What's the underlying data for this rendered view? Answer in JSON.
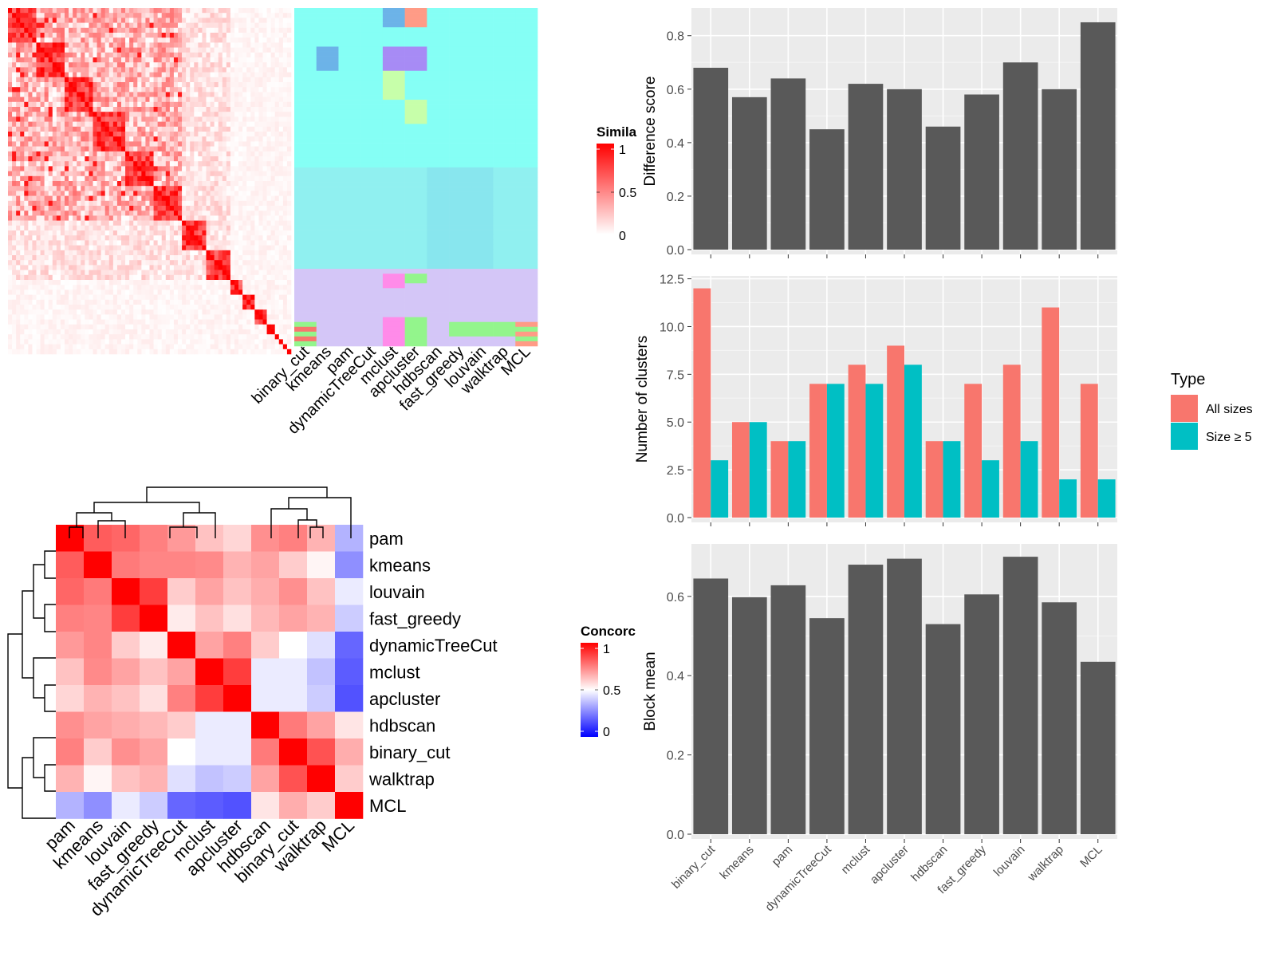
{
  "methods": [
    "binary_cut",
    "kmeans",
    "pam",
    "dynamicTreeCut",
    "mclust",
    "apcluster",
    "hdbscan",
    "fast_greedy",
    "louvain",
    "walktrap",
    "MCL"
  ],
  "similarity_legend": {
    "title": "Simila",
    "ticks": [
      "1",
      "0.5",
      "0"
    ]
  },
  "concordance_legend": {
    "title": "Concorc",
    "ticks": [
      "1",
      "0.5",
      "0"
    ]
  },
  "concordance_heatmap": {
    "order": [
      "pam",
      "kmeans",
      "louvain",
      "fast_greedy",
      "dynamicTreeCut",
      "mclust",
      "apcluster",
      "hdbscan",
      "binary_cut",
      "walktrap",
      "MCL"
    ],
    "values": [
      [
        1.0,
        0.82,
        0.8,
        0.75,
        0.7,
        0.62,
        0.58,
        0.72,
        0.75,
        0.65,
        0.35
      ],
      [
        0.82,
        1.0,
        0.76,
        0.74,
        0.74,
        0.73,
        0.65,
        0.68,
        0.6,
        0.52,
        0.28
      ],
      [
        0.8,
        0.76,
        1.0,
        0.88,
        0.6,
        0.68,
        0.62,
        0.66,
        0.72,
        0.62,
        0.46
      ],
      [
        0.75,
        0.74,
        0.88,
        1.0,
        0.54,
        0.62,
        0.56,
        0.64,
        0.68,
        0.65,
        0.4
      ],
      [
        0.7,
        0.74,
        0.6,
        0.54,
        1.0,
        0.68,
        0.75,
        0.6,
        0.5,
        0.44,
        0.2
      ],
      [
        0.62,
        0.73,
        0.68,
        0.62,
        0.68,
        1.0,
        0.88,
        0.46,
        0.46,
        0.38,
        0.18
      ],
      [
        0.58,
        0.65,
        0.62,
        0.56,
        0.75,
        0.88,
        1.0,
        0.46,
        0.46,
        0.4,
        0.16
      ],
      [
        0.72,
        0.68,
        0.66,
        0.64,
        0.6,
        0.46,
        0.46,
        1.0,
        0.76,
        0.68,
        0.55
      ],
      [
        0.75,
        0.6,
        0.72,
        0.68,
        0.5,
        0.46,
        0.46,
        0.76,
        1.0,
        0.84,
        0.66
      ],
      [
        0.65,
        0.52,
        0.62,
        0.65,
        0.44,
        0.38,
        0.4,
        0.68,
        0.84,
        1.0,
        0.6
      ],
      [
        0.35,
        0.28,
        0.46,
        0.4,
        0.2,
        0.18,
        0.16,
        0.55,
        0.66,
        0.6,
        1.0
      ]
    ]
  },
  "chart_data": [
    {
      "type": "bar",
      "categories": [
        "binary_cut",
        "kmeans",
        "pam",
        "dynamicTreeCut",
        "mclust",
        "apcluster",
        "hdbscan",
        "fast_greedy",
        "louvain",
        "walktrap",
        "MCL"
      ],
      "values": [
        0.68,
        0.57,
        0.64,
        0.45,
        0.62,
        0.6,
        0.46,
        0.58,
        0.7,
        0.6,
        0.85
      ],
      "ylabel": "Difference score",
      "ylim": [
        0,
        0.9
      ],
      "yticks": [
        0.0,
        0.2,
        0.4,
        0.6,
        0.8
      ],
      "ytick_labels": [
        "0.0",
        "0.2",
        "0.4",
        "0.6",
        "0.8"
      ],
      "grid": true,
      "color": "#595959"
    },
    {
      "type": "bar",
      "categories": [
        "binary_cut",
        "kmeans",
        "pam",
        "dynamicTreeCut",
        "mclust",
        "apcluster",
        "hdbscan",
        "fast_greedy",
        "louvain",
        "walktrap",
        "MCL"
      ],
      "series": [
        {
          "name": "All sizes",
          "values": [
            12,
            5,
            4,
            7,
            8,
            9,
            4,
            7,
            8,
            11,
            7
          ],
          "color": "#F8766D"
        },
        {
          "name": "Size ≥ 5",
          "values": [
            3,
            5,
            4,
            7,
            7,
            8,
            4,
            3,
            4,
            2,
            2
          ],
          "color": "#00BFC4"
        }
      ],
      "ylabel": "Number of clusters",
      "ylim": [
        0,
        12.6
      ],
      "yticks": [
        0,
        2.5,
        5,
        7.5,
        10,
        12.5
      ],
      "ytick_labels": [
        "0.0",
        "2.5",
        "5.0",
        "7.5",
        "10.0",
        "12.5"
      ],
      "legend": {
        "title": "Type",
        "position": "right"
      },
      "grid": true
    },
    {
      "type": "bar",
      "categories": [
        "binary_cut",
        "kmeans",
        "pam",
        "dynamicTreeCut",
        "mclust",
        "apcluster",
        "hdbscan",
        "fast_greedy",
        "louvain",
        "walktrap",
        "MCL"
      ],
      "values": [
        0.645,
        0.598,
        0.628,
        0.545,
        0.68,
        0.695,
        0.53,
        0.605,
        0.7,
        0.585,
        0.435
      ],
      "ylabel": "Block mean",
      "ylim": [
        0,
        0.73
      ],
      "yticks": [
        0.0,
        0.2,
        0.4,
        0.6
      ],
      "ytick_labels": [
        "0.0",
        "0.2",
        "0.4",
        "0.6"
      ],
      "grid": true,
      "color": "#595959"
    }
  ]
}
